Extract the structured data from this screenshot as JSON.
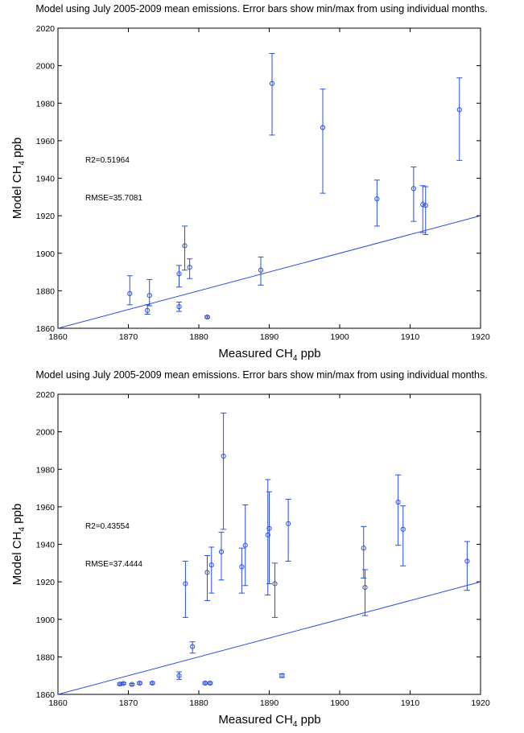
{
  "colors": {
    "series": "#2b4fe0",
    "axis": "#000000"
  },
  "chart_data": [
    {
      "type": "scatter",
      "title": "Model using July 2005-2009 mean emissions. Error bars show min/max from using individual months.",
      "xlabel": {
        "main": "Measured CH",
        "sub": "4",
        "tail": " ppb"
      },
      "ylabel": {
        "main": "Model CH",
        "sub": "4",
        "tail": " ppb"
      },
      "xlim": [
        1860,
        1920
      ],
      "ylim": [
        1860,
        2020
      ],
      "xticks": [
        1860,
        1870,
        1880,
        1890,
        1900,
        1910,
        1920
      ],
      "yticks": [
        1860,
        1880,
        1900,
        1920,
        1940,
        1960,
        1980,
        2000,
        2020
      ],
      "grid": false,
      "stats": {
        "r2": "R2=0.51964",
        "rmse": "RMSE=35.7081"
      },
      "fit_line": {
        "x": [
          1860,
          1920
        ],
        "y": [
          1860,
          1920
        ]
      },
      "points": [
        {
          "x": 1870.2,
          "y": 1878.5,
          "ymin": 1872.5,
          "ymax": 1888.0
        },
        {
          "x": 1872.7,
          "y": 1869.5,
          "ymin": 1867.5,
          "ymax": 1872.5
        },
        {
          "x": 1873.0,
          "y": 1877.5,
          "ymin": 1872.0,
          "ymax": 1886.0
        },
        {
          "x": 1877.2,
          "y": 1871.5,
          "ymin": 1869.0,
          "ymax": 1874.0
        },
        {
          "x": 1877.2,
          "y": 1889.0,
          "ymin": 1882.0,
          "ymax": 1893.5
        },
        {
          "x": 1878.0,
          "y": 1904.0,
          "ymin": 1891.0,
          "ymax": 1914.5
        },
        {
          "x": 1878.7,
          "y": 1892.5,
          "ymin": 1886.5,
          "ymax": 1897.0
        },
        {
          "x": 1881.2,
          "y": 1866.0,
          "ymin": 1865.5,
          "ymax": 1866.5
        },
        {
          "x": 1888.8,
          "y": 1891.0,
          "ymin": 1883.0,
          "ymax": 1898.0
        },
        {
          "x": 1890.4,
          "y": 1990.5,
          "ymin": 1963.0,
          "ymax": 2006.5
        },
        {
          "x": 1897.6,
          "y": 1967.0,
          "ymin": 1932.0,
          "ymax": 1987.5
        },
        {
          "x": 1905.3,
          "y": 1929.0,
          "ymin": 1914.5,
          "ymax": 1939.0
        },
        {
          "x": 1910.5,
          "y": 1934.5,
          "ymin": 1917.0,
          "ymax": 1946.0
        },
        {
          "x": 1911.8,
          "y": 1926.0,
          "ymin": 1911.0,
          "ymax": 1936.0
        },
        {
          "x": 1912.2,
          "y": 1925.5,
          "ymin": 1910.0,
          "ymax": 1935.5
        },
        {
          "x": 1917.0,
          "y": 1976.5,
          "ymin": 1949.5,
          "ymax": 1993.5
        }
      ]
    },
    {
      "type": "scatter",
      "title": "Model using July 2005-2009 mean emissions. Error bars show min/max from using individual months.",
      "xlabel": {
        "main": "Measured CH",
        "sub": "4",
        "tail": " ppb"
      },
      "ylabel": {
        "main": "Model CH",
        "sub": "4",
        "tail": " ppb"
      },
      "xlim": [
        1860,
        1920
      ],
      "ylim": [
        1860,
        2020
      ],
      "xticks": [
        1860,
        1870,
        1880,
        1890,
        1900,
        1910,
        1920
      ],
      "yticks": [
        1860,
        1880,
        1900,
        1920,
        1940,
        1960,
        1980,
        2000,
        2020
      ],
      "grid": false,
      "stats": {
        "r2": "R2=0.43554",
        "rmse": "RMSE=37.4444"
      },
      "fit_line": {
        "x": [
          1860,
          1920
        ],
        "y": [
          1860,
          1920
        ]
      },
      "points": [
        {
          "x": 1868.8,
          "y": 1865.5,
          "ymin": 1865.0,
          "ymax": 1866.0
        },
        {
          "x": 1869.3,
          "y": 1865.8,
          "ymin": 1865.3,
          "ymax": 1866.3
        },
        {
          "x": 1870.5,
          "y": 1865.3,
          "ymin": 1864.8,
          "ymax": 1865.8
        },
        {
          "x": 1871.6,
          "y": 1866.0,
          "ymin": 1865.5,
          "ymax": 1866.5
        },
        {
          "x": 1873.4,
          "y": 1866.0,
          "ymin": 1865.5,
          "ymax": 1866.5
        },
        {
          "x": 1877.2,
          "y": 1870.0,
          "ymin": 1868.0,
          "ymax": 1872.0
        },
        {
          "x": 1878.1,
          "y": 1919.0,
          "ymin": 1901.0,
          "ymax": 1931.0
        },
        {
          "x": 1879.1,
          "y": 1885.5,
          "ymin": 1882.0,
          "ymax": 1888.0
        },
        {
          "x": 1880.9,
          "y": 1866.0,
          "ymin": 1865.5,
          "ymax": 1866.5
        },
        {
          "x": 1881.2,
          "y": 1925.0,
          "ymin": 1910.0,
          "ymax": 1934.0
        },
        {
          "x": 1881.6,
          "y": 1866.0,
          "ymin": 1865.5,
          "ymax": 1866.5
        },
        {
          "x": 1881.8,
          "y": 1929.0,
          "ymin": 1914.0,
          "ymax": 1938.5
        },
        {
          "x": 1883.2,
          "y": 1936.0,
          "ymin": 1921.0,
          "ymax": 1946.5
        },
        {
          "x": 1883.5,
          "y": 1987.0,
          "ymin": 1948.0,
          "ymax": 2010.0
        },
        {
          "x": 1886.1,
          "y": 1928.0,
          "ymin": 1914.0,
          "ymax": 1938.0
        },
        {
          "x": 1886.6,
          "y": 1939.5,
          "ymin": 1918.0,
          "ymax": 1961.0
        },
        {
          "x": 1889.8,
          "y": 1945.0,
          "ymin": 1913.0,
          "ymax": 1974.5
        },
        {
          "x": 1890.0,
          "y": 1948.5,
          "ymin": 1919.0,
          "ymax": 1968.0
        },
        {
          "x": 1890.8,
          "y": 1919.0,
          "ymin": 1901.0,
          "ymax": 1930.0
        },
        {
          "x": 1891.8,
          "y": 1870.0,
          "ymin": 1869.0,
          "ymax": 1871.0
        },
        {
          "x": 1892.7,
          "y": 1951.0,
          "ymin": 1931.0,
          "ymax": 1964.0
        },
        {
          "x": 1903.4,
          "y": 1938.0,
          "ymin": 1922.0,
          "ymax": 1949.5
        },
        {
          "x": 1903.6,
          "y": 1917.0,
          "ymin": 1902.0,
          "ymax": 1926.5
        },
        {
          "x": 1908.3,
          "y": 1962.5,
          "ymin": 1939.5,
          "ymax": 1977.0
        },
        {
          "x": 1909.0,
          "y": 1948.0,
          "ymin": 1928.5,
          "ymax": 1960.5
        },
        {
          "x": 1918.1,
          "y": 1931.0,
          "ymin": 1915.5,
          "ymax": 1941.5
        }
      ]
    }
  ]
}
